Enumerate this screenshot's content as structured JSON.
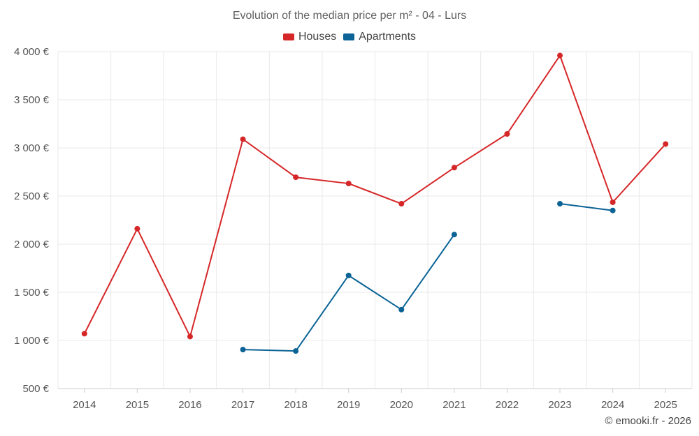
{
  "colors": {
    "houses": "#d62728",
    "apartments": "#0b6396",
    "grid": "#e8e8e8",
    "axis": "#cccccc"
  },
  "chart_data": {
    "type": "line",
    "title": "Evolution of the median price per m² - 04 - Lurs",
    "xlabel": "",
    "ylabel": "",
    "categories": [
      "2014",
      "2015",
      "2016",
      "2017",
      "2018",
      "2019",
      "2020",
      "2021",
      "2022",
      "2023",
      "2024",
      "2025"
    ],
    "ylim": [
      500,
      4000
    ],
    "yticks": [
      500,
      1000,
      1500,
      2000,
      2500,
      3000,
      3500,
      4000
    ],
    "ytick_labels": [
      "500 €",
      "1 000 €",
      "1 500 €",
      "2 000 €",
      "2 500 €",
      "3 000 €",
      "3 500 €",
      "4 000 €"
    ],
    "grid": true,
    "legend_position": "top-center",
    "series": [
      {
        "name": "Houses",
        "color": "#d62728",
        "values": [
          1070,
          2160,
          1040,
          3090,
          2695,
          2630,
          2420,
          2795,
          3145,
          3960,
          2435,
          3040
        ]
      },
      {
        "name": "Apartments",
        "color": "#0b6396",
        "values": [
          null,
          null,
          null,
          905,
          890,
          1675,
          1320,
          2100,
          null,
          2420,
          2350,
          null
        ]
      }
    ]
  },
  "credit": "© emooki.fr - 2026"
}
